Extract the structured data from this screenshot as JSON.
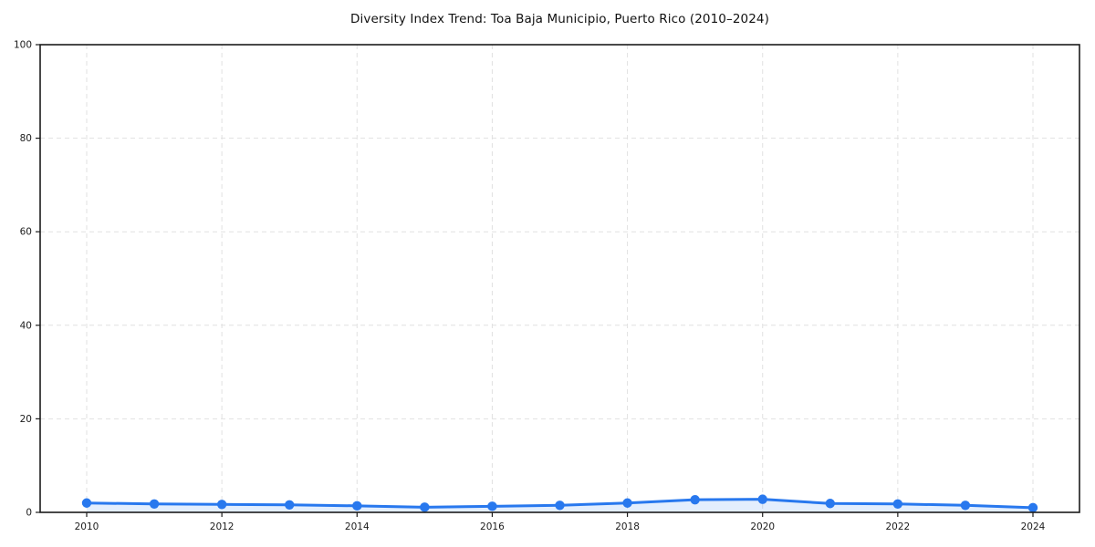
{
  "chart_data": {
    "type": "line",
    "title": "Diversity Index Trend: Toa Baja Municipio, Puerto Rico (2010–2024)",
    "xlabel": "",
    "ylabel": "",
    "x": [
      2010,
      2011,
      2012,
      2013,
      2014,
      2015,
      2016,
      2017,
      2018,
      2019,
      2020,
      2021,
      2022,
      2023,
      2024
    ],
    "values": [
      2.0,
      1.8,
      1.7,
      1.6,
      1.4,
      1.1,
      1.3,
      1.5,
      2.0,
      2.7,
      2.8,
      1.9,
      1.8,
      1.5,
      1.0
    ],
    "ylim": [
      0,
      100
    ],
    "yticks": [
      0,
      20,
      40,
      60,
      80,
      100
    ],
    "xticks": [
      2010,
      2012,
      2014,
      2016,
      2018,
      2020,
      2022,
      2024
    ],
    "grid": "dashed",
    "legend": "none",
    "style": {
      "line_color": "#2878ee",
      "marker_color": "#2878ee",
      "fill_opacity": 0.13,
      "grid_color": "#e1e1e1",
      "axis_color": "#1c1c1c",
      "text_color": "#1c1c1c",
      "background": "#ffffff"
    }
  }
}
